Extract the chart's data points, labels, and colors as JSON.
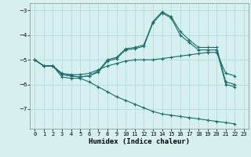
{
  "xlabel": "Humidex (Indice chaleur)",
  "background_color": "#d6f0f0",
  "grid_color": "#b0d8d8",
  "line_color": "#1a6b6b",
  "xlim": [
    -0.5,
    23.5
  ],
  "ylim": [
    -7.8,
    -2.7
  ],
  "yticks": [
    -7,
    -6,
    -5,
    -4,
    -3
  ],
  "xticks": [
    0,
    1,
    2,
    3,
    4,
    5,
    6,
    7,
    8,
    9,
    10,
    11,
    12,
    13,
    14,
    15,
    16,
    17,
    18,
    19,
    20,
    21,
    22,
    23
  ],
  "line1_x": [
    0,
    1,
    2,
    3,
    4,
    5,
    6,
    7,
    8,
    9,
    10,
    11,
    12,
    13,
    14,
    15,
    16,
    17,
    18,
    19,
    20,
    21,
    22
  ],
  "line1_y": [
    -5.0,
    -5.25,
    -5.25,
    -5.6,
    -5.65,
    -5.7,
    -5.65,
    -5.5,
    -5.05,
    -4.95,
    -4.6,
    -4.55,
    -4.45,
    -3.5,
    -3.1,
    -3.3,
    -4.0,
    -4.3,
    -4.6,
    -4.6,
    -4.6,
    -6.0,
    -6.1
  ],
  "line2_x": [
    0,
    1,
    2,
    3,
    4,
    5,
    6,
    7,
    8,
    9,
    10,
    11,
    12,
    13,
    14,
    15,
    16,
    17,
    18,
    19,
    20,
    21,
    22
  ],
  "line2_y": [
    -5.0,
    -5.25,
    -5.25,
    -5.6,
    -5.65,
    -5.7,
    -5.65,
    -5.45,
    -5.0,
    -4.9,
    -4.55,
    -4.5,
    -4.4,
    -3.45,
    -3.05,
    -3.25,
    -3.85,
    -4.2,
    -4.5,
    -4.5,
    -4.5,
    -5.9,
    -6.0
  ],
  "line3_x": [
    0,
    1,
    2,
    3,
    4,
    5,
    6,
    7,
    8,
    9,
    10,
    11,
    12,
    13,
    14,
    15,
    16,
    17,
    18,
    19,
    20,
    21,
    22
  ],
  "line3_y": [
    -5.0,
    -5.25,
    -5.25,
    -5.55,
    -5.6,
    -5.6,
    -5.55,
    -5.4,
    -5.25,
    -5.15,
    -5.05,
    -5.0,
    -5.0,
    -5.0,
    -4.95,
    -4.9,
    -4.85,
    -4.8,
    -4.75,
    -4.7,
    -4.7,
    -5.55,
    -5.65
  ],
  "line4_x": [
    0,
    1,
    2,
    3,
    4,
    5,
    6,
    7,
    8,
    9,
    10,
    11,
    12,
    13,
    14,
    15,
    16,
    17,
    18,
    19,
    20,
    21,
    22
  ],
  "line4_y": [
    -5.0,
    -5.25,
    -5.25,
    -5.7,
    -5.75,
    -5.75,
    -5.9,
    -6.1,
    -6.3,
    -6.5,
    -6.65,
    -6.8,
    -6.95,
    -7.1,
    -7.2,
    -7.25,
    -7.3,
    -7.35,
    -7.4,
    -7.45,
    -7.5,
    -7.55,
    -7.6
  ]
}
